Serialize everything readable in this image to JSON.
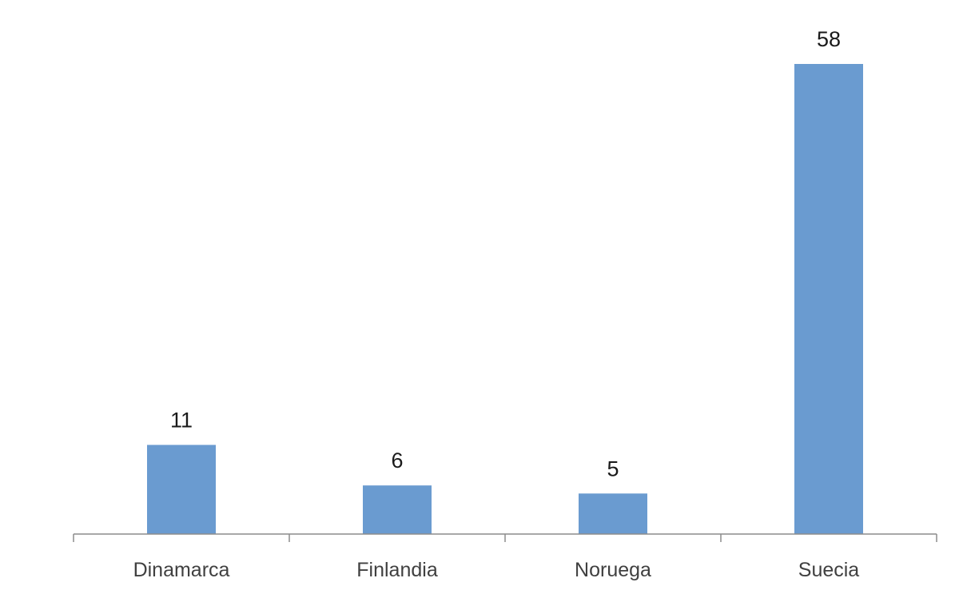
{
  "chart_data": {
    "type": "bar",
    "title": "",
    "xlabel": "",
    "ylabel": "",
    "categories": [
      "Dinamarca",
      "Finlandia",
      "Noruega",
      "Suecia"
    ],
    "values": [
      11,
      6,
      5,
      58
    ],
    "ylim": [
      0,
      58
    ],
    "grid": false,
    "legend": "none",
    "data_labels": true,
    "bar_color": "#6a9bd0",
    "axis_color": "#8c8c8c"
  }
}
